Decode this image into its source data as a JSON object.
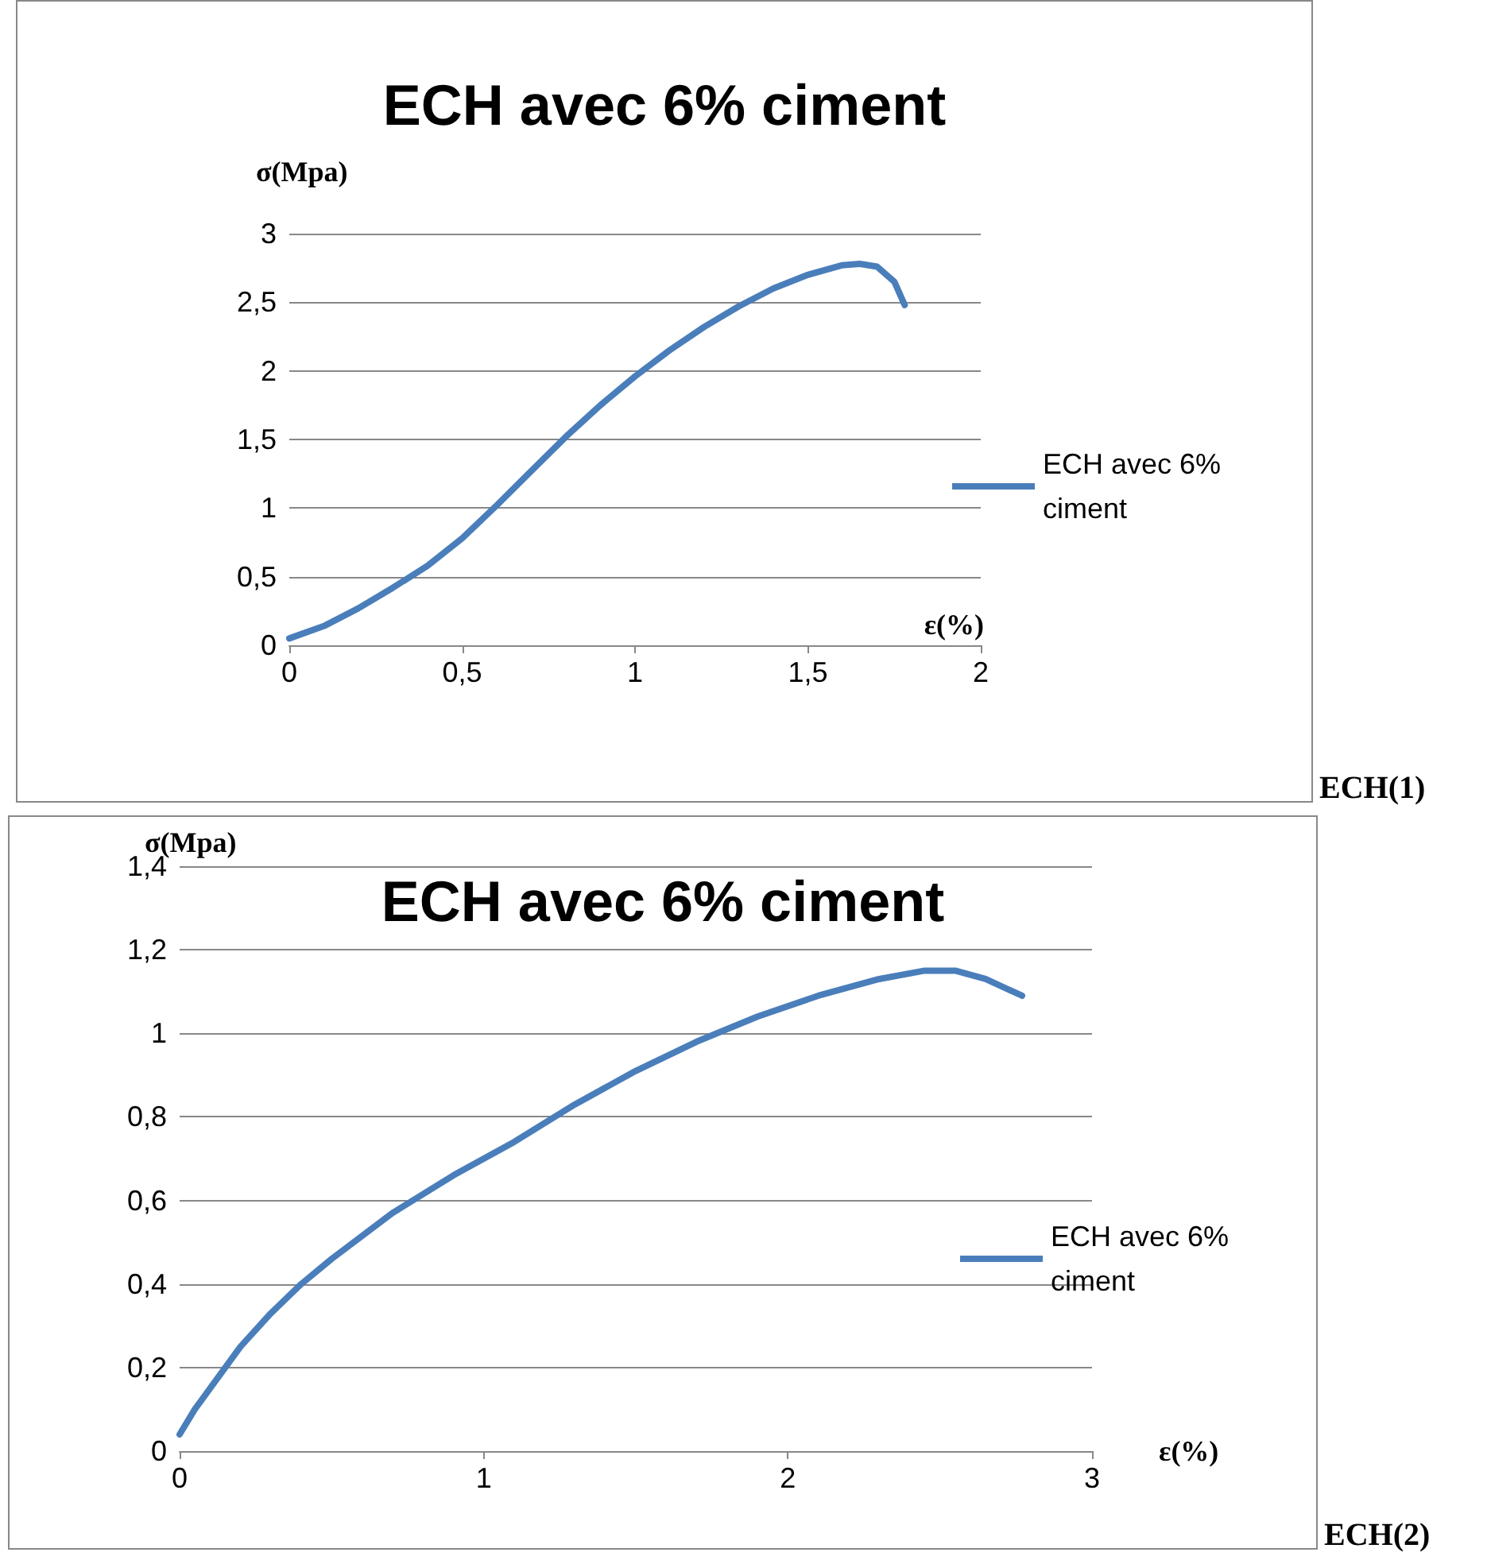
{
  "chart_data": [
    {
      "type": "line",
      "title": "ECH avec 6% ciment",
      "xlabel": "ε(%)",
      "ylabel": "σ(Mpa)",
      "annotations": [
        "ECH(1)"
      ],
      "series": [
        {
          "name": "ECH avec 6% ciment",
          "color": "#4a7ebb",
          "x": [
            0,
            0.1,
            0.2,
            0.3,
            0.4,
            0.5,
            0.6,
            0.7,
            0.8,
            0.9,
            1.0,
            1.1,
            1.2,
            1.3,
            1.4,
            1.5,
            1.6,
            1.65,
            1.7,
            1.75,
            1.78
          ],
          "values": [
            0.05,
            0.14,
            0.27,
            0.42,
            0.58,
            0.78,
            1.02,
            1.27,
            1.52,
            1.75,
            1.96,
            2.15,
            2.32,
            2.47,
            2.6,
            2.7,
            2.77,
            2.78,
            2.76,
            2.65,
            2.48
          ]
        }
      ],
      "xlim": [
        0,
        2
      ],
      "xticks": [
        {
          "value": 0,
          "label": "0"
        },
        {
          "value": 0.5,
          "label": "0,5"
        },
        {
          "value": 1,
          "label": "1"
        },
        {
          "value": 1.5,
          "label": "1,5"
        },
        {
          "value": 2,
          "label": "2"
        }
      ],
      "ylim": [
        0,
        3
      ],
      "yticks": [
        {
          "value": 0,
          "label": "0"
        },
        {
          "value": 0.5,
          "label": "0,5"
        },
        {
          "value": 1,
          "label": "1"
        },
        {
          "value": 1.5,
          "label": "1,5"
        },
        {
          "value": 2,
          "label": "2"
        },
        {
          "value": 2.5,
          "label": "2,5"
        },
        {
          "value": 3,
          "label": "3"
        }
      ],
      "grid": "y",
      "legend": "right",
      "marker": "none",
      "line_style": "solid"
    },
    {
      "type": "line",
      "title": "ECH avec 6% ciment",
      "xlabel": "ε(%)",
      "ylabel": "σ(Mpa)",
      "annotations": [
        "ECH(2)"
      ],
      "series": [
        {
          "name": "ECH avec 6% ciment",
          "color": "#4a7ebb",
          "x": [
            0,
            0.05,
            0.1,
            0.2,
            0.3,
            0.4,
            0.5,
            0.7,
            0.9,
            1.1,
            1.3,
            1.5,
            1.7,
            1.9,
            2.1,
            2.3,
            2.45,
            2.55,
            2.65,
            2.77
          ],
          "values": [
            0.04,
            0.1,
            0.15,
            0.25,
            0.33,
            0.4,
            0.46,
            0.57,
            0.66,
            0.74,
            0.83,
            0.91,
            0.98,
            1.04,
            1.09,
            1.13,
            1.15,
            1.15,
            1.13,
            1.09
          ]
        }
      ],
      "xlim": [
        0,
        3
      ],
      "xticks": [
        0,
        1,
        2,
        3
      ],
      "ylim": [
        0,
        1.4
      ],
      "yticks": [
        {
          "value": 0,
          "label": "0"
        },
        {
          "value": 0.2,
          "label": "0,2"
        },
        {
          "value": 0.4,
          "label": "0,4"
        },
        {
          "value": 0.6,
          "label": "0,6"
        },
        {
          "value": 0.8,
          "label": "0,8"
        },
        {
          "value": 1,
          "label": "1"
        },
        {
          "value": 1.2,
          "label": "1,2"
        },
        {
          "value": 1.4,
          "label": "1,4"
        }
      ],
      "grid": "y",
      "legend": "right",
      "marker": "none",
      "line_style": "solid"
    }
  ]
}
